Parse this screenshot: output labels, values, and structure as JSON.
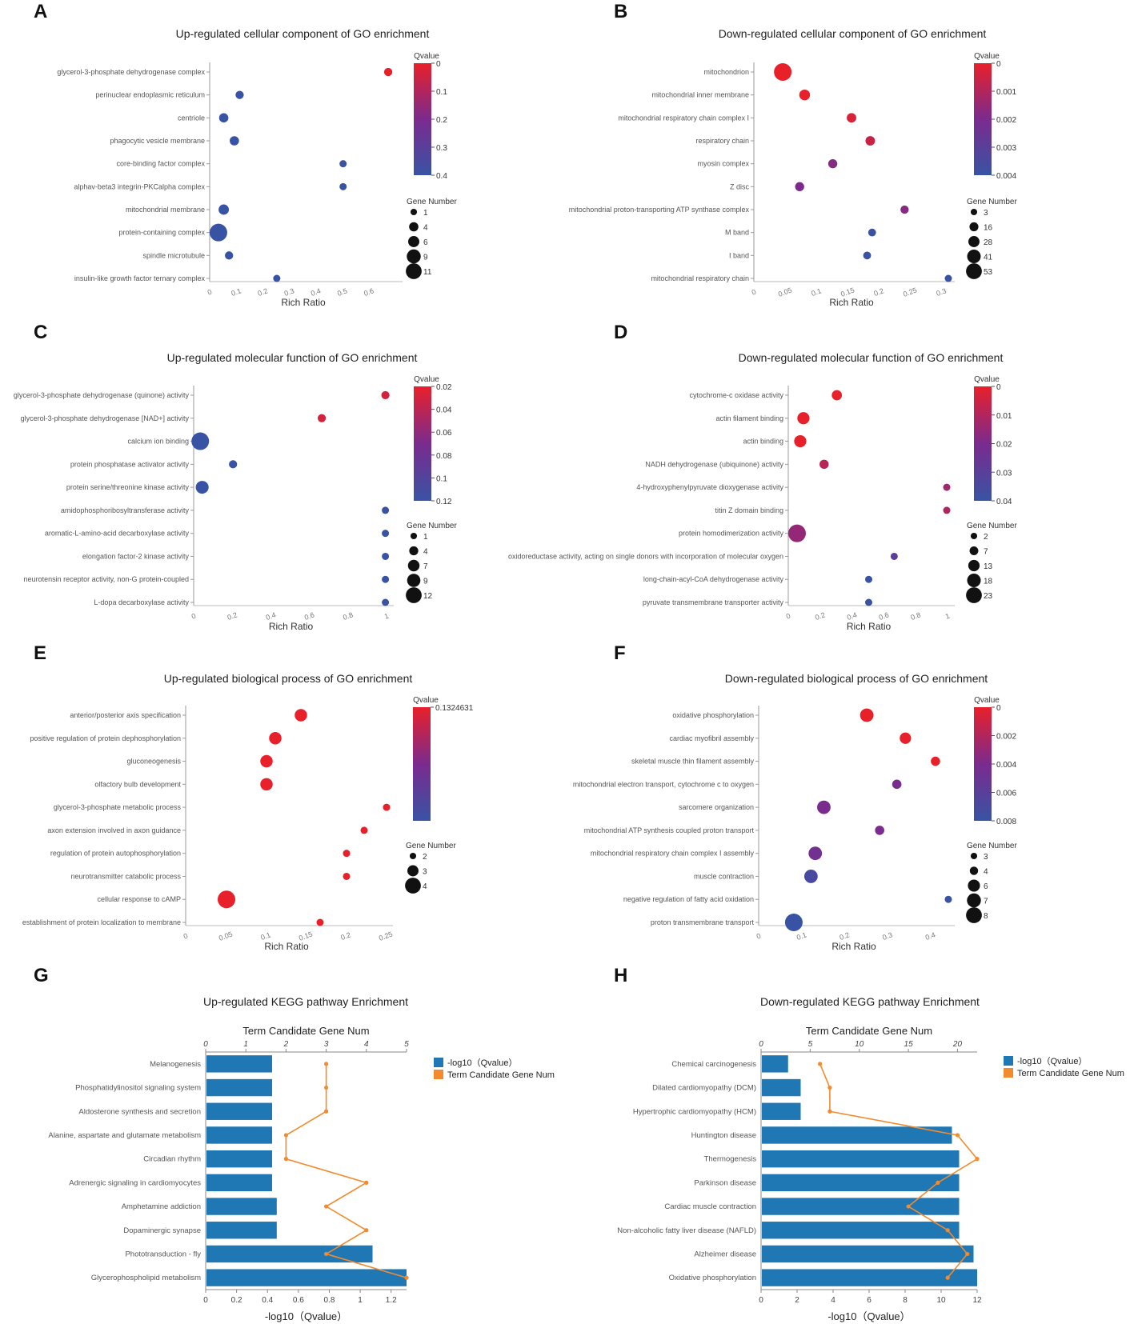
{
  "figure": {
    "colors": {
      "red": "#e8202a",
      "purple": "#7a2b8e",
      "blue": "#3853a4",
      "bar": "#1f77b4",
      "line": "#f28a2e"
    }
  },
  "chart_data": [
    {
      "id": "A",
      "type": "scatter",
      "panel_label": "A",
      "title": "Up-regulated cellular component of GO enrichment",
      "xlabel": "Rich Ratio",
      "xticks": [
        "0",
        "0.1",
        "0.2",
        "0.3",
        "0.4",
        "0.5",
        "0.6"
      ],
      "xlim": [
        0,
        0.7
      ],
      "terms": [
        "glycerol-3-phosphate dehydrogenase complex",
        "perinuclear endoplasmic reticulum",
        "centriole",
        "phagocytic vesicle membrane",
        "core-binding factor complex",
        "alphav-beta3 integrin-PKCalpha complex",
        "mitochondrial membrane",
        "protein-containing complex",
        "spindle microtubule",
        "insulin-like growth factor ternary complex"
      ],
      "rich_ratio": [
        0.67,
        0.11,
        0.05,
        0.09,
        0.5,
        0.5,
        0.05,
        0.03,
        0.07,
        0.25
      ],
      "gene_number": [
        2,
        2,
        3,
        3,
        1,
        1,
        4,
        11,
        2,
        1
      ],
      "qvalue": [
        0.0,
        0.4,
        0.4,
        0.4,
        0.4,
        0.4,
        0.4,
        0.4,
        0.4,
        0.4
      ],
      "qvalue_title": "Qvalue",
      "qvalue_range": [
        0,
        0.4
      ],
      "qvalue_ticks": [
        "0",
        "0.1",
        "0.2",
        "0.3",
        "0.4"
      ],
      "gene_title": "Gene Number",
      "gene_legend": [
        "1",
        "4",
        "6",
        "9",
        "11"
      ],
      "gene_range": [
        1,
        11
      ]
    },
    {
      "id": "B",
      "type": "scatter",
      "panel_label": "B",
      "title": "Down-regulated cellular component of GO enrichment",
      "xlabel": "Rich Ratio",
      "xticks": [
        "0",
        "0.05",
        "0.1",
        "0.15",
        "0.2",
        "0.25",
        "0.3"
      ],
      "xlim": [
        0,
        0.31
      ],
      "terms": [
        "mitochondrion",
        "mitochondrial inner membrane",
        "mitochondrial respiratory chain complex I",
        "respiratory chain",
        "myosin complex",
        "Z disc",
        "mitochondrial proton-transporting ATP synthase complex",
        "M band",
        "I band",
        "mitochondrial respiratory chain"
      ],
      "rich_ratio": [
        0.045,
        0.08,
        0.155,
        0.185,
        0.125,
        0.072,
        0.24,
        0.188,
        0.18,
        0.31
      ],
      "gene_number": [
        53,
        20,
        14,
        14,
        12,
        12,
        8,
        6,
        6,
        3
      ],
      "qvalue": [
        0.0,
        0.0,
        0.0003,
        0.0007,
        0.002,
        0.0022,
        0.002,
        0.0045,
        0.0045,
        0.0048
      ],
      "qvalue_title": "Qvalue",
      "qvalue_range": [
        0,
        0.0045
      ],
      "qvalue_ticks": [
        "0",
        "0.001",
        "0.002",
        "0.003",
        "0.004"
      ],
      "gene_title": "Gene Number",
      "gene_legend": [
        "3",
        "16",
        "28",
        "41",
        "53"
      ],
      "gene_range": [
        3,
        53
      ]
    },
    {
      "id": "C",
      "type": "scatter",
      "panel_label": "C",
      "title": "Up-regulated molecular function of GO enrichment",
      "xlabel": "Rich Ratio",
      "xticks": [
        "0",
        "0.2",
        "0.4",
        "0.6",
        "0.8",
        "1"
      ],
      "xlim": [
        0,
        1
      ],
      "terms": [
        "glycerol-3-phosphate dehydrogenase (quinone) activity",
        "glycerol-3-phosphate dehydrogenase [NAD+] activity",
        "calcium ion binding",
        "protein phosphatase activator activity",
        "protein serine/threonine kinase activity",
        "amidophosphoribosyltransferase activity",
        "aromatic-L-amino-acid decarboxylase activity",
        "elongation factor-2 kinase activity",
        "neurotensin receptor activity, non-G protein-coupled",
        "L-dopa decarboxylase activity"
      ],
      "rich_ratio": [
        0.99,
        0.66,
        0.03,
        0.2,
        0.04,
        0.99,
        0.99,
        0.99,
        0.99,
        0.99
      ],
      "gene_number": [
        2,
        2,
        12,
        2,
        7,
        1,
        1,
        1,
        1,
        1
      ],
      "qvalue": [
        0.02,
        0.02,
        0.12,
        0.12,
        0.12,
        0.12,
        0.12,
        0.12,
        0.12,
        0.12
      ],
      "qvalue_title": "Qvalue",
      "qvalue_range": [
        0.01,
        0.12
      ],
      "qvalue_ticks": [
        "0.02",
        "0.04",
        "0.06",
        "0.08",
        "0.1",
        "0.12"
      ],
      "gene_title": "Gene Number",
      "gene_legend": [
        "1",
        "4",
        "7",
        "9",
        "12"
      ],
      "gene_range": [
        1,
        12
      ]
    },
    {
      "id": "D",
      "type": "scatter",
      "panel_label": "D",
      "title": "Down-regulated molecular function of GO enrichment",
      "xlabel": "Rich Ratio",
      "xticks": [
        "0",
        "0.2",
        "0.4",
        "0.6",
        "0.8",
        "1"
      ],
      "xlim": [
        0,
        1
      ],
      "terms": [
        "cytochrome-c oxidase activity",
        "actin filament binding",
        "actin binding",
        "NADH dehydrogenase (ubiquinone) activity",
        "4-hydroxyphenylpyruvate dioxygenase activity",
        "titin Z domain binding",
        "protein homodimerization activity",
        "oxidoreductase activity, acting on single donors with incorporation of molecular oxygen",
        "long-chain-acyl-CoA dehydrogenase activity",
        "pyruvate transmembrane transporter activity"
      ],
      "rich_ratio": [
        0.3,
        0.09,
        0.07,
        0.22,
        0.99,
        0.99,
        0.05,
        0.66,
        0.5,
        0.5
      ],
      "gene_number": [
        8,
        12,
        12,
        6,
        2,
        2,
        23,
        2,
        2,
        2
      ],
      "qvalue": [
        0.0,
        0.0,
        0.0,
        0.01,
        0.015,
        0.012,
        0.017,
        0.033,
        0.045,
        0.045
      ],
      "qvalue_title": "Qvalue",
      "qvalue_range": [
        0,
        0.045
      ],
      "qvalue_ticks": [
        "0",
        "0.01",
        "0.02",
        "0.03",
        "0.04"
      ],
      "gene_title": "Gene Number",
      "gene_legend": [
        "2",
        "7",
        "13",
        "18",
        "23"
      ],
      "gene_range": [
        2,
        23
      ]
    },
    {
      "id": "E",
      "type": "scatter",
      "panel_label": "E",
      "title": "Up-regulated biological process of GO enrichment",
      "xlabel": "Rich Ratio",
      "xticks": [
        "0",
        "0.05",
        "0.1",
        "0.15",
        "0.2",
        "0.25"
      ],
      "xlim": [
        0,
        0.25
      ],
      "terms": [
        "anterior/posterior axis specification",
        "positive regulation of protein dephosphorylation",
        "gluconeogenesis",
        "olfactory bulb development",
        "glycerol-3-phosphate metabolic process",
        "axon extension involved in axon guidance",
        "regulation of protein autophosphorylation",
        "neurotransmitter catabolic process",
        "cellular response to cAMP",
        "establishment of protein localization to membrane"
      ],
      "rich_ratio": [
        0.143,
        0.111,
        0.1,
        0.1,
        0.25,
        0.222,
        0.2,
        0.2,
        0.05,
        0.167
      ],
      "gene_number": [
        3,
        3,
        3,
        3,
        2,
        2,
        2,
        2,
        4,
        2
      ],
      "qvalue": [
        0.1324631,
        0.1324631,
        0.1324631,
        0.1324631,
        0.1324631,
        0.1324631,
        0.1324631,
        0.1324631,
        0.1324631,
        0.1324631
      ],
      "qvalue_title": "Qvalue",
      "qvalue_range": [
        0.1324631,
        0.2
      ],
      "qvalue_ticks": [
        "0.1324631"
      ],
      "gene_title": "Gene Number",
      "gene_legend": [
        "2",
        "3",
        "4"
      ],
      "gene_range": [
        2,
        4
      ]
    },
    {
      "id": "F",
      "type": "scatter",
      "panel_label": "F",
      "title": "Down-regulated biological process of GO enrichment",
      "xlabel": "Rich Ratio",
      "xticks": [
        "0",
        "0.1",
        "0.2",
        "0.3",
        "0.4"
      ],
      "xlim": [
        0,
        0.44
      ],
      "terms": [
        "oxidative phosphorylation",
        "cardiac myofibril assembly",
        "skeletal muscle thin filament assembly",
        "mitochondrial electron transport, cytochrome c to oxygen",
        "sarcomere organization",
        "mitochondrial ATP synthesis coupled proton transport",
        "mitochondrial respiratory chain complex I assembly",
        "muscle contraction",
        "negative regulation of fatty acid oxidation",
        "proton transmembrane transport"
      ],
      "rich_ratio": [
        0.25,
        0.34,
        0.41,
        0.32,
        0.15,
        0.28,
        0.13,
        0.12,
        0.44,
        0.08
      ],
      "gene_number": [
        6,
        5,
        4,
        4,
        6,
        4,
        6,
        6,
        3,
        8
      ],
      "qvalue": [
        0.0,
        0.0,
        0.0,
        0.004,
        0.004,
        0.004,
        0.0045,
        0.007,
        0.008,
        0.008
      ],
      "qvalue_title": "Qvalue",
      "qvalue_range": [
        0,
        0.008
      ],
      "qvalue_ticks": [
        "0",
        "0.002",
        "0.004",
        "0.006",
        "0.008"
      ],
      "gene_title": "Gene Number",
      "gene_legend": [
        "3",
        "4",
        "6",
        "7",
        "8"
      ],
      "gene_range": [
        3,
        8
      ]
    },
    {
      "id": "G",
      "type": "bar",
      "panel_label": "G",
      "title": "Up-regulated KEGG pathway Enrichment",
      "top_axis_title": "Term Candidate Gene Num",
      "xlabel": "-log10（Qvalue）",
      "categories": [
        "Melanogenesis",
        "Phosphatidylinositol signaling system",
        "Aldosterone synthesis and secretion",
        "Alanine, aspartate and glutamate metabolism",
        "Circadian rhythm",
        "Adrenergic signaling in cardiomyocytes",
        "Amphetamine addiction",
        "Dopaminergic synapse",
        "Phototransduction - fly",
        "Glycerophospholipid metabolism"
      ],
      "bar_values": [
        0.43,
        0.43,
        0.43,
        0.43,
        0.43,
        0.43,
        0.46,
        0.46,
        1.08,
        1.3
      ],
      "line_values": [
        3,
        3,
        3,
        2,
        2,
        4,
        3,
        4,
        3,
        5
      ],
      "bottom_ticks": [
        "0",
        "0.2",
        "0.4",
        "0.6",
        "0.8",
        "1",
        "1.2"
      ],
      "bottom_max": 1.3,
      "top_ticks": [
        "0",
        "1",
        "2",
        "3",
        "4",
        "5"
      ],
      "top_max": 5,
      "legend": [
        "-log10（Qvalue）",
        "Term Candidate Gene Num"
      ]
    },
    {
      "id": "H",
      "type": "bar",
      "panel_label": "H",
      "title": "Down-regulated KEGG pathway Enrichment",
      "top_axis_title": "Term Candidate Gene Num",
      "xlabel": "-log10（Qvalue）",
      "categories": [
        "Chemical carcinogenesis",
        "Dilated cardiomyopathy (DCM)",
        "Hypertrophic cardiomyopathy (HCM)",
        "Huntington disease",
        "Thermogenesis",
        "Parkinson disease",
        "Cardiac muscle contraction",
        "Non-alcoholic fatty liver disease (NAFLD)",
        "Alzheimer disease",
        "Oxidative phosphorylation"
      ],
      "bar_values": [
        1.5,
        2.2,
        2.2,
        10.6,
        11.0,
        11.0,
        11.0,
        11.0,
        11.8,
        12.0
      ],
      "line_values": [
        6,
        7,
        7,
        20,
        22,
        18,
        15,
        19,
        21,
        19
      ],
      "bottom_ticks": [
        "0",
        "2",
        "4",
        "6",
        "8",
        "10",
        "12"
      ],
      "bottom_max": 12,
      "top_ticks": [
        "0",
        "5",
        "10",
        "15",
        "20"
      ],
      "top_max": 22,
      "legend": [
        "-log10（Qvalue）",
        "Term Candidate Gene Num"
      ]
    }
  ]
}
